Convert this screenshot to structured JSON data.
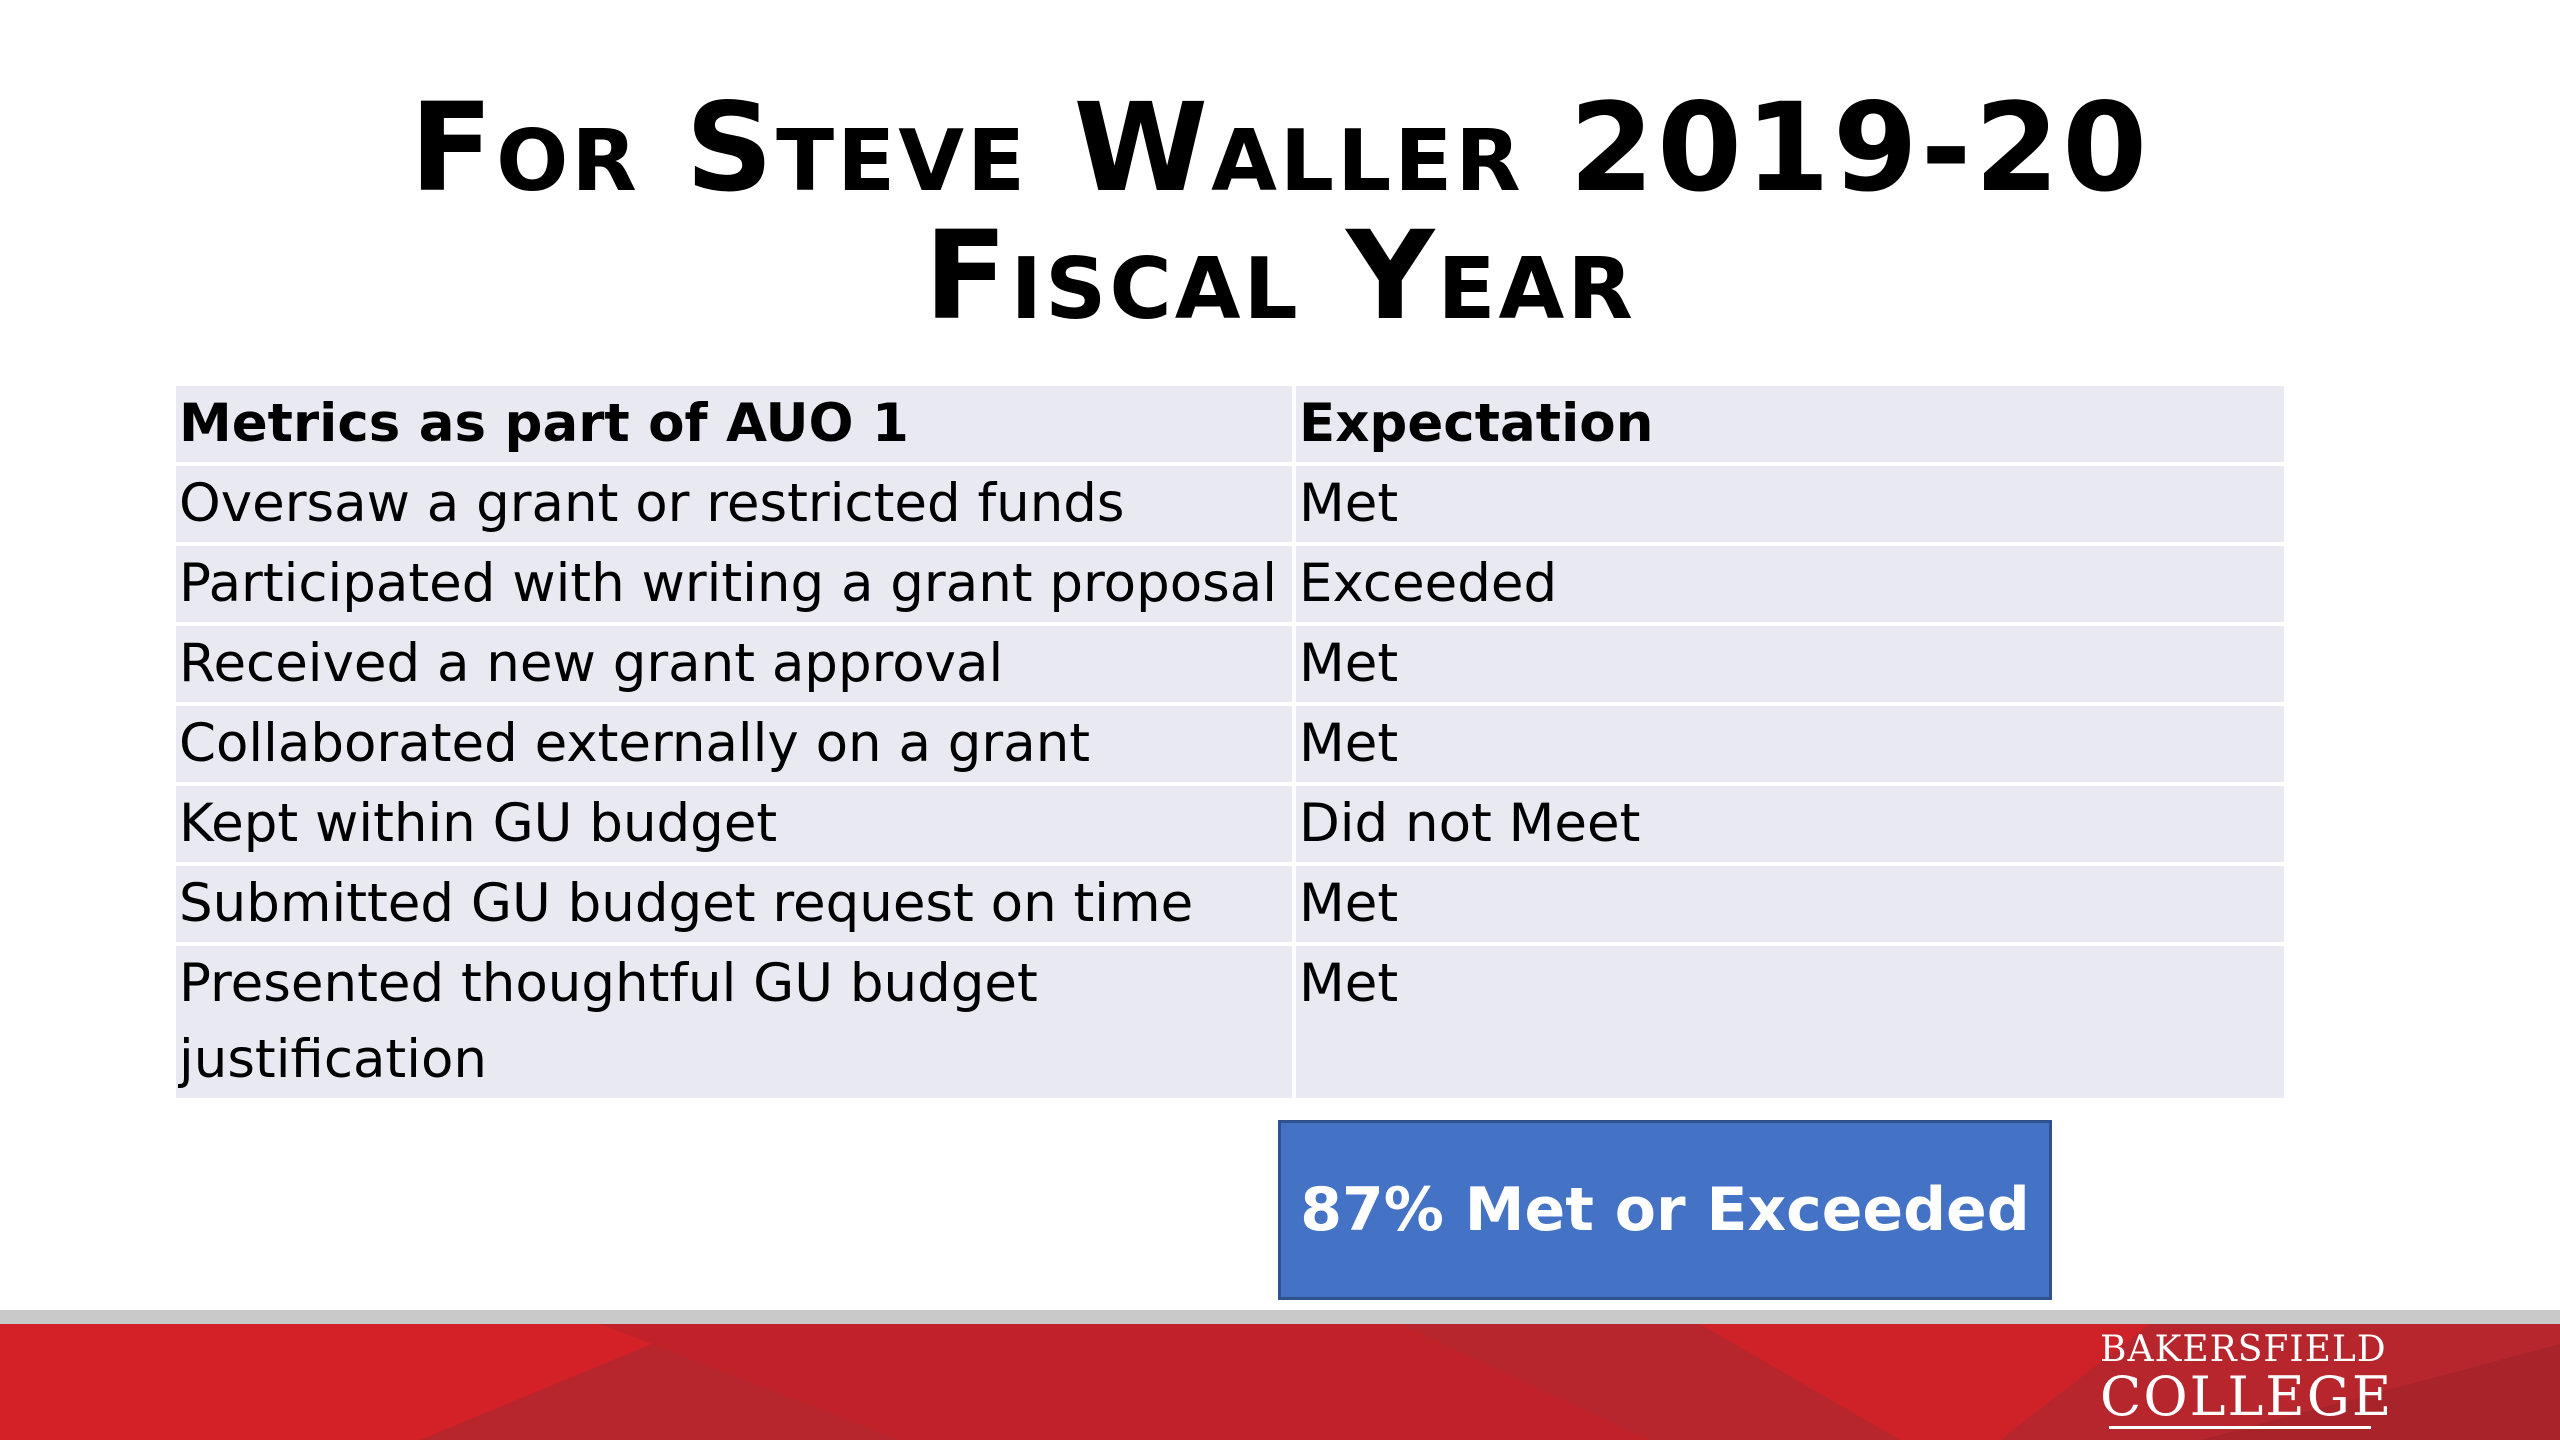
{
  "slide": {
    "title_line1": "For Steve Waller 2019-20",
    "title_line2": "Fiscal Year"
  },
  "table": {
    "headers": [
      "Metrics as part of AUO 1",
      "Expectation"
    ],
    "rows": [
      {
        "metric": "Oversaw a grant or restricted funds",
        "expectation": "Met"
      },
      {
        "metric": "Participated with writing a grant proposal",
        "expectation": "Exceeded"
      },
      {
        "metric": "Received a new grant approval",
        "expectation": "Met"
      },
      {
        "metric": "Collaborated externally on a grant",
        "expectation": "Met"
      },
      {
        "metric": "Kept within GU budget",
        "expectation": "Did not Meet"
      },
      {
        "metric": "Submitted GU budget request on time",
        "expectation": "Met"
      },
      {
        "metric": "Presented thoughtful GU budget justification",
        "expectation": "Met"
      }
    ]
  },
  "summary": {
    "label": "87% Met or Exceeded"
  },
  "footer": {
    "logo_line1": "BAKERSFIELD",
    "logo_line2": "COLLEGE"
  },
  "colors": {
    "table_fill": "#e9e9f1",
    "summary_fill": "#4472c4",
    "footer_red": "#b7262d",
    "footer_bright_red": "#d42027"
  }
}
